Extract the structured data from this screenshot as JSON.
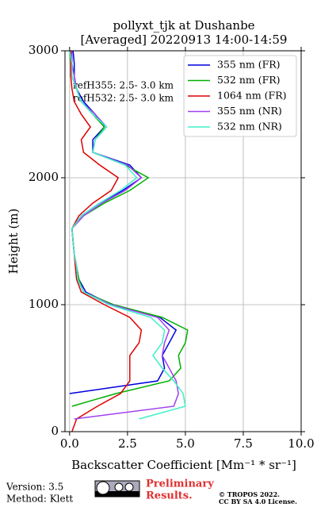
{
  "chart_data": {
    "type": "line",
    "title": "pollyxt_tjk at Dushanbe",
    "subtitle": "[Averaged] 20220913 14:00-14:59",
    "x_label": "Backscatter Coefficient [Mm⁻¹ * sr⁻¹]",
    "y_label": "Height (m)",
    "annotations": [
      "refH355:  2.5- 3.0 km",
      "refH532:  2.5- 3.0 km"
    ],
    "heights": [
      0,
      100,
      200,
      300,
      400,
      500,
      600,
      700,
      800,
      900,
      1000,
      1100,
      1200,
      1300,
      1400,
      1500,
      1600,
      1700,
      1800,
      1900,
      2000,
      2100,
      2200,
      2300,
      2400,
      2500,
      2600,
      2700,
      2800,
      2900,
      3000
    ],
    "series": [
      {
        "name": "355 nm (FR)",
        "color": "#0000dd",
        "values": [
          null,
          null,
          null,
          0.0,
          3.8,
          4.1,
          4.0,
          4.3,
          4.6,
          3.9,
          1.8,
          0.7,
          0.4,
          0.3,
          0.2,
          0.15,
          0.1,
          0.5,
          1.3,
          2.3,
          3.1,
          2.6,
          1.0,
          1.0,
          1.5,
          1.1,
          0.6,
          0.3,
          0.2,
          0.2,
          0.15
        ]
      },
      {
        "name": "532 nm (FR)",
        "color": "#00b000",
        "values": [
          null,
          null,
          0.1,
          2.0,
          4.3,
          4.8,
          4.7,
          5.0,
          5.1,
          4.0,
          1.9,
          0.6,
          0.4,
          0.3,
          0.2,
          0.15,
          0.1,
          0.6,
          1.5,
          2.6,
          3.4,
          2.4,
          1.0,
          1.1,
          1.5,
          1.0,
          0.5,
          0.3,
          0.1,
          0.05,
          0.0
        ]
      },
      {
        "name": "1064 nm (FR)",
        "color": "#dd0000",
        "values": [
          0.1,
          0.3,
          1.2,
          2.2,
          2.6,
          2.6,
          2.6,
          3.0,
          3.1,
          2.6,
          1.5,
          0.5,
          0.3,
          0.25,
          0.2,
          0.15,
          0.1,
          0.4,
          1.0,
          1.8,
          2.1,
          1.3,
          0.6,
          0.5,
          0.9,
          0.5,
          0.2,
          0.1,
          0.05,
          0.05,
          0.05
        ]
      },
      {
        "name": "355 nm (NR)",
        "color": "#a040f0",
        "values": [
          null,
          0.2,
          4.5,
          4.7,
          4.6,
          4.3,
          4.0,
          4.1,
          4.3,
          3.8,
          1.8,
          0.6,
          0.35,
          0.3,
          0.2,
          0.15,
          0.1,
          0.6,
          1.4,
          2.4,
          3.1,
          2.5,
          1.0,
          1.1,
          1.6,
          1.1,
          0.5,
          0.3,
          0.2,
          0.1,
          0.1
        ]
      },
      {
        "name": "532 nm (NR)",
        "color": "#40f0c8",
        "values": [
          null,
          3.0,
          5.0,
          4.9,
          4.5,
          4.0,
          3.6,
          4.0,
          4.1,
          3.5,
          1.7,
          0.6,
          0.35,
          0.3,
          0.2,
          0.15,
          0.1,
          0.5,
          1.3,
          2.2,
          2.9,
          2.4,
          1.0,
          1.1,
          1.6,
          1.0,
          0.5,
          0.3,
          0.1,
          0.1,
          0.0
        ]
      }
    ],
    "xlim": [
      -0.2,
      10
    ],
    "ylim": [
      0,
      3000
    ],
    "xticks": [
      {
        "value": 0,
        "label": "0.0"
      },
      {
        "value": 2.5,
        "label": "2.5"
      },
      {
        "value": 5,
        "label": "5.0"
      },
      {
        "value": 7.5,
        "label": "7.5"
      },
      {
        "value": 10,
        "label": "10.0"
      }
    ],
    "yticks": [
      0,
      1000,
      2000,
      3000
    ],
    "grid": true,
    "legend": "upper right"
  },
  "footer": {
    "version": "Version: 3.5",
    "method": "Method: Klett",
    "notice": [
      "Preliminary",
      "Results."
    ],
    "copyright": "© TROPOS 2022.",
    "license": "CC BY SA 4.0 License."
  }
}
